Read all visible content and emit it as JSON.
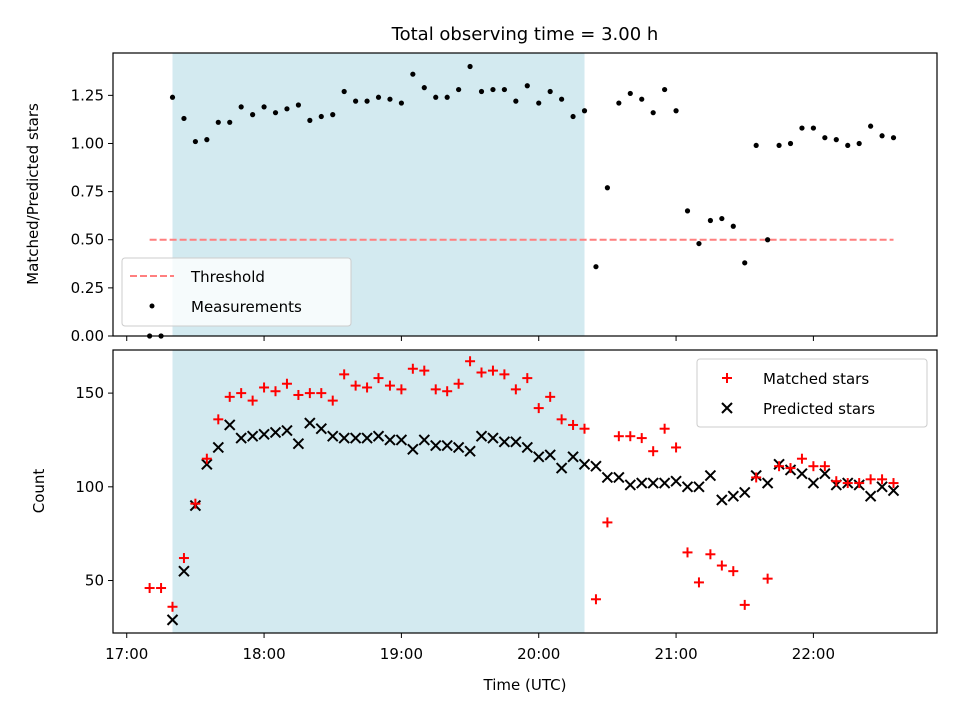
{
  "chart_data": [
    {
      "type": "scatter",
      "title": "Total observing time = 3.00 h",
      "xlabel": "",
      "ylabel": "Matched/Predicted stars",
      "ylim": [
        0,
        1.47
      ],
      "yticks": [
        0,
        0.25,
        0.5,
        0.75,
        1.0,
        1.25
      ],
      "ytick_labels": [
        "0.00",
        "0.25",
        "0.50",
        "0.75",
        "1.00",
        "1.25"
      ],
      "xlim": [
        "16:54",
        "22:54"
      ],
      "xticks": [
        "17:00",
        "18:00",
        "19:00",
        "20:00",
        "21:00",
        "22:00"
      ],
      "shaded_span": [
        "17:20",
        "20:20"
      ],
      "shade_color": "#d3eaf0",
      "legend_position": "lower-left",
      "threshold": {
        "name": "Threshold",
        "y": 0.5,
        "x": [
          "17:10",
          "22:35"
        ],
        "color": "#ff7f7f"
      },
      "series": [
        {
          "name": "Measurements",
          "color": "#000000",
          "marker": "dot",
          "x": [
            "17:10",
            "17:15",
            "17:20",
            "17:25",
            "17:30",
            "17:35",
            "17:40",
            "17:45",
            "17:50",
            "17:55",
            "18:00",
            "18:05",
            "18:10",
            "18:15",
            "18:20",
            "18:25",
            "18:30",
            "18:35",
            "18:40",
            "18:45",
            "18:50",
            "18:55",
            "19:00",
            "19:05",
            "19:10",
            "19:15",
            "19:20",
            "19:25",
            "19:30",
            "19:35",
            "19:40",
            "19:45",
            "19:50",
            "19:55",
            "20:00",
            "20:05",
            "20:10",
            "20:15",
            "20:20",
            "20:25",
            "20:30",
            "20:35",
            "20:40",
            "20:45",
            "20:50",
            "20:55",
            "21:00",
            "21:05",
            "21:10",
            "21:15",
            "21:20",
            "21:25",
            "21:30",
            "21:35",
            "21:40",
            "21:45",
            "21:50",
            "21:55",
            "22:00",
            "22:05",
            "22:10",
            "22:15",
            "22:20",
            "22:25",
            "22:30",
            "22:35"
          ],
          "y": [
            0.0,
            0.0,
            1.24,
            1.13,
            1.01,
            1.02,
            1.11,
            1.11,
            1.19,
            1.15,
            1.19,
            1.16,
            1.18,
            1.2,
            1.12,
            1.14,
            1.15,
            1.27,
            1.22,
            1.22,
            1.24,
            1.23,
            1.21,
            1.36,
            1.29,
            1.24,
            1.24,
            1.28,
            1.4,
            1.27,
            1.28,
            1.28,
            1.22,
            1.3,
            1.21,
            1.27,
            1.23,
            1.14,
            1.17,
            0.36,
            0.77,
            1.21,
            1.26,
            1.23,
            1.16,
            1.28,
            1.17,
            0.65,
            0.48,
            0.6,
            0.61,
            0.57,
            0.38,
            0.99,
            0.5,
            0.99,
            1.0,
            1.08,
            1.08,
            1.03,
            1.02,
            0.99,
            1.0,
            1.09,
            1.04,
            1.03
          ]
        }
      ]
    },
    {
      "type": "scatter",
      "title": "",
      "xlabel": "Time (UTC)",
      "ylabel": "Count",
      "ylim": [
        22,
        173
      ],
      "yticks": [
        50,
        100,
        150
      ],
      "ytick_labels": [
        "50",
        "100",
        "150"
      ],
      "xlim": [
        "16:54",
        "22:54"
      ],
      "xticks": [
        "17:00",
        "18:00",
        "19:00",
        "20:00",
        "21:00",
        "22:00"
      ],
      "xtick_labels": [
        "17:00",
        "18:00",
        "19:00",
        "20:00",
        "21:00",
        "22:00"
      ],
      "shaded_span": [
        "17:20",
        "20:20"
      ],
      "shade_color": "#d3eaf0",
      "legend_position": "top-right",
      "x": [
        "17:10",
        "17:15",
        "17:20",
        "17:25",
        "17:30",
        "17:35",
        "17:40",
        "17:45",
        "17:50",
        "17:55",
        "18:00",
        "18:05",
        "18:10",
        "18:15",
        "18:20",
        "18:25",
        "18:30",
        "18:35",
        "18:40",
        "18:45",
        "18:50",
        "18:55",
        "19:00",
        "19:05",
        "19:10",
        "19:15",
        "19:20",
        "19:25",
        "19:30",
        "19:35",
        "19:40",
        "19:45",
        "19:50",
        "19:55",
        "20:00",
        "20:05",
        "20:10",
        "20:15",
        "20:20",
        "20:25",
        "20:30",
        "20:35",
        "20:40",
        "20:45",
        "20:50",
        "20:55",
        "21:00",
        "21:05",
        "21:10",
        "21:15",
        "21:20",
        "21:25",
        "21:30",
        "21:35",
        "21:40",
        "21:45",
        "21:50",
        "21:55",
        "22:00",
        "22:05",
        "22:10",
        "22:15",
        "22:20",
        "22:25",
        "22:30",
        "22:35"
      ],
      "series": [
        {
          "name": "Matched stars",
          "color": "#ff0000",
          "marker": "plus",
          "values": [
            46,
            46,
            36,
            62,
            91,
            115,
            136,
            148,
            150,
            146,
            153,
            151,
            155,
            149,
            150,
            150,
            146,
            160,
            154,
            153,
            158,
            154,
            152,
            163,
            162,
            152,
            151,
            155,
            167,
            161,
            162,
            160,
            152,
            158,
            142,
            148,
            136,
            133,
            131,
            40,
            81,
            127,
            127,
            126,
            119,
            131,
            121,
            65,
            49,
            64,
            58,
            55,
            37,
            105,
            51,
            111,
            110,
            115,
            111,
            111,
            103,
            102,
            102,
            104,
            104,
            102
          ]
        },
        {
          "name": "Predicted stars",
          "color": "#000000",
          "marker": "x",
          "values": [
            null,
            null,
            29,
            55,
            90,
            112,
            121,
            133,
            126,
            127,
            128,
            129,
            130,
            123,
            134,
            131,
            127,
            126,
            126,
            126,
            127,
            125,
            125,
            120,
            125,
            122,
            122,
            121,
            119,
            127,
            126,
            124,
            124,
            121,
            116,
            117,
            110,
            116,
            112,
            111,
            105,
            105,
            101,
            102,
            102,
            102,
            103,
            100,
            100,
            106,
            93,
            95,
            97,
            106,
            102,
            112,
            109,
            107,
            102,
            107,
            101,
            102,
            101,
            95,
            100,
            98
          ]
        }
      ]
    }
  ]
}
